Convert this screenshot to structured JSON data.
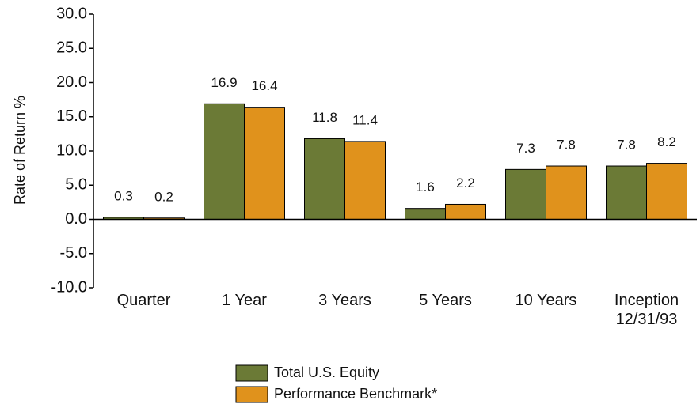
{
  "chart_data": {
    "type": "bar",
    "y_label": "Rate of Return %",
    "categories": [
      "Quarter",
      "1 Year",
      "3 Years",
      "5 Years",
      "10 Years",
      "Inception 12/31/93"
    ],
    "series": [
      {
        "name": "Total U.S. Equity",
        "color": "#6b7a36",
        "values": [
          0.3,
          16.9,
          11.8,
          1.6,
          7.3,
          7.8
        ]
      },
      {
        "name": "Performance Benchmark*",
        "color": "#e0921c",
        "values": [
          0.2,
          16.4,
          11.4,
          2.2,
          7.8,
          8.2
        ]
      }
    ],
    "ylim": [
      -10,
      30
    ],
    "yticks": [
      {
        "value": -10,
        "label": "-10.0"
      },
      {
        "value": -5,
        "label": "-5.0"
      },
      {
        "value": 0,
        "label": "0.0"
      },
      {
        "value": 5,
        "label": "5.0"
      },
      {
        "value": 10,
        "label": "10.0"
      },
      {
        "value": 15,
        "label": "15.0"
      },
      {
        "value": 20,
        "label": "20.0"
      },
      {
        "value": 25,
        "label": "25.0"
      },
      {
        "value": 30,
        "label": "30.0"
      }
    ],
    "grid": false
  }
}
